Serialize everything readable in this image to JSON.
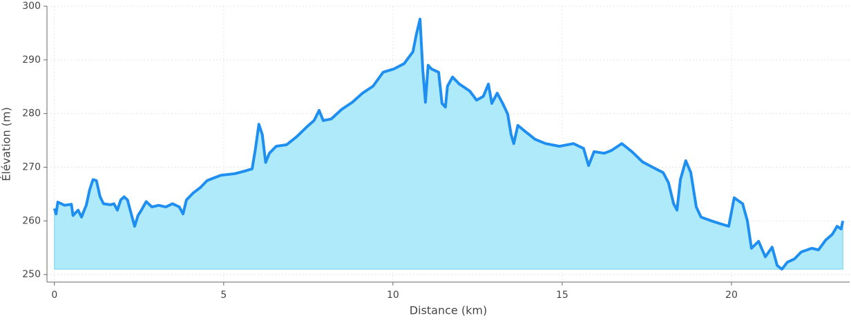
{
  "chart_data": {
    "type": "area",
    "xlabel": "Distance (km)",
    "ylabel": "Élévation (m)",
    "x": [
      0,
      0.05,
      0.1,
      0.3,
      0.5,
      0.55,
      0.7,
      0.8,
      0.9,
      0.94,
      1.04,
      1.14,
      1.24,
      1.35,
      1.45,
      1.65,
      1.76,
      1.86,
      1.96,
      2.06,
      2.16,
      2.27,
      2.37,
      2.47,
      2.57,
      2.71,
      2.88,
      3.08,
      3.29,
      3.49,
      3.69,
      3.8,
      3.9,
      4.1,
      4.31,
      4.51,
      4.71,
      4.92,
      5.33,
      5.63,
      5.84,
      5.94,
      6.04,
      6.14,
      6.24,
      6.35,
      6.55,
      6.86,
      7.16,
      7.47,
      7.67,
      7.82,
      7.94,
      8.18,
      8.49,
      8.8,
      9.1,
      9.41,
      9.71,
      10.02,
      10.33,
      10.59,
      10.69,
      10.8,
      10.88,
      10.96,
      11.04,
      11.14,
      11.35,
      11.45,
      11.55,
      11.61,
      11.76,
      11.96,
      12.27,
      12.47,
      12.67,
      12.82,
      12.92,
      13.08,
      13.24,
      13.39,
      13.49,
      13.57,
      13.69,
      13.9,
      14.2,
      14.51,
      14.92,
      15.33,
      15.63,
      15.78,
      15.94,
      16.24,
      16.45,
      16.76,
      17.06,
      17.37,
      17.67,
      17.98,
      18.14,
      18.29,
      18.39,
      18.49,
      18.65,
      18.8,
      18.96,
      19.1,
      19.41,
      19.71,
      19.92,
      20.08,
      20.33,
      20.47,
      20.59,
      20.8,
      21.0,
      21.2,
      21.35,
      21.49,
      21.65,
      21.86,
      22.06,
      22.37,
      22.57,
      22.78,
      22.98,
      23.12,
      23.24,
      23.29
    ],
    "y": [
      262.3,
      261.3,
      263.5,
      262.9,
      263.1,
      261,
      262,
      260.7,
      262.3,
      262.9,
      265.8,
      267.7,
      267.5,
      264.5,
      263.2,
      263,
      263.2,
      262,
      263.9,
      264.5,
      263.9,
      261.3,
      259,
      261,
      262,
      263.6,
      262.6,
      262.9,
      262.6,
      263.2,
      262.6,
      261.3,
      263.9,
      265.2,
      266.2,
      267.5,
      268,
      268.5,
      268.8,
      269.3,
      269.7,
      273.5,
      278,
      276.1,
      270.9,
      272.6,
      273.9,
      274.2,
      275.7,
      277.6,
      278.7,
      280.6,
      278.7,
      279,
      280.8,
      282.1,
      283.8,
      285.1,
      287.7,
      288.3,
      289.3,
      291.5,
      294.7,
      297.6,
      288.3,
      282.1,
      289,
      288.3,
      287.7,
      281.9,
      281.2,
      285.1,
      286.8,
      285.5,
      284.2,
      282.5,
      283.2,
      285.5,
      281.9,
      283.8,
      281.9,
      279.9,
      276.1,
      274.4,
      277.8,
      276.7,
      275.2,
      274.4,
      273.9,
      274.4,
      273.5,
      270.3,
      272.9,
      272.6,
      273.1,
      274.4,
      272.9,
      271,
      270,
      269,
      267.1,
      263.2,
      262,
      267.7,
      271.2,
      269,
      262.6,
      260.7,
      260,
      259.4,
      259,
      264.3,
      263.2,
      260,
      254.9,
      256.2,
      253.3,
      255.1,
      251.7,
      251,
      252.3,
      252.9,
      254.2,
      254.9,
      254.6,
      256.4,
      257.5,
      259,
      258.5,
      260
    ],
    "color": "#1f8ef1",
    "fill_color": "#aeeaf9",
    "xlim": [
      -0.22,
      23.49
    ],
    "ylim": [
      248.6,
      300
    ],
    "xticks": [
      0,
      5,
      10,
      15,
      20
    ],
    "yticks": [
      250,
      260,
      270,
      280,
      290,
      300
    ],
    "grid": true
  }
}
